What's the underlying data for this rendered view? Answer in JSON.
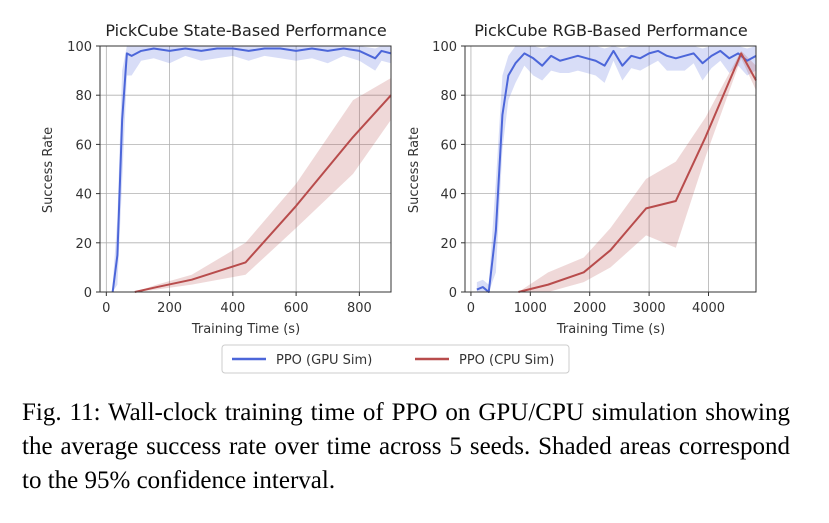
{
  "chart_data": [
    {
      "type": "line",
      "title": "PickCube State-Based Performance",
      "xlabel": "Training Time (s)",
      "ylabel": "Success Rate",
      "xlim": [
        -20,
        900
      ],
      "ylim": [
        0,
        100
      ],
      "xticks": [
        0,
        200,
        400,
        600,
        800
      ],
      "yticks": [
        0,
        20,
        40,
        60,
        80,
        100
      ],
      "grid": true,
      "series": [
        {
          "name": "PPO (GPU Sim)",
          "color": "#4c66d9",
          "x": [
            20,
            35,
            50,
            65,
            80,
            110,
            150,
            200,
            250,
            300,
            350,
            400,
            450,
            500,
            550,
            600,
            650,
            700,
            750,
            800,
            850,
            870,
            900
          ],
          "y": [
            0,
            15,
            70,
            97,
            96,
            98,
            99,
            98,
            99,
            98,
            99,
            99,
            98,
            99,
            99,
            98,
            99,
            98,
            99,
            98,
            95,
            98,
            97
          ],
          "lower": [
            0,
            3,
            45,
            88,
            88,
            94,
            95,
            93,
            96,
            94,
            95,
            96,
            94,
            96,
            95,
            94,
            95,
            93,
            96,
            94,
            90,
            94,
            93
          ],
          "upper": [
            3,
            30,
            90,
            100,
            100,
            100,
            100,
            100,
            100,
            100,
            100,
            100,
            100,
            100,
            100,
            100,
            100,
            100,
            100,
            100,
            99,
            100,
            100
          ]
        },
        {
          "name": "PPO (CPU Sim)",
          "color": "#b84c4c",
          "x": [
            90,
            160,
            270,
            440,
            600,
            780,
            900
          ],
          "y": [
            0,
            2,
            5,
            12,
            35,
            63,
            80
          ],
          "lower": [
            0,
            1,
            3,
            7,
            26,
            48,
            70
          ],
          "upper": [
            0,
            3,
            7,
            20,
            44,
            78,
            87
          ]
        }
      ]
    },
    {
      "type": "line",
      "title": "PickCube RGB-Based Performance",
      "xlabel": "Training Time (s)",
      "ylabel": "Success Rate",
      "xlim": [
        -100,
        4800
      ],
      "ylim": [
        0,
        100
      ],
      "xticks": [
        0,
        1000,
        2000,
        3000,
        4000
      ],
      "yticks": [
        0,
        20,
        40,
        60,
        80,
        100
      ],
      "grid": true,
      "series": [
        {
          "name": "PPO (GPU Sim)",
          "color": "#4c66d9",
          "x": [
            100,
            200,
            300,
            420,
            530,
            630,
            750,
            900,
            1050,
            1200,
            1350,
            1500,
            1650,
            1800,
            1950,
            2100,
            2250,
            2400,
            2550,
            2700,
            2850,
            3000,
            3150,
            3300,
            3450,
            3600,
            3750,
            3900,
            4050,
            4200,
            4350,
            4500,
            4650,
            4800
          ],
          "y": [
            1,
            2,
            0,
            25,
            72,
            88,
            93,
            97,
            95,
            92,
            96,
            94,
            95,
            96,
            95,
            94,
            92,
            98,
            92,
            96,
            95,
            97,
            98,
            96,
            95,
            96,
            97,
            93,
            96,
            98,
            95,
            97,
            94,
            96
          ],
          "lower": [
            0,
            0,
            0,
            8,
            58,
            78,
            85,
            92,
            88,
            86,
            90,
            89,
            89,
            90,
            89,
            88,
            85,
            94,
            86,
            91,
            90,
            92,
            94,
            90,
            90,
            90,
            93,
            86,
            91,
            94,
            89,
            92,
            88,
            90
          ],
          "upper": [
            4,
            5,
            3,
            45,
            88,
            96,
            100,
            100,
            100,
            99,
            100,
            100,
            100,
            100,
            100,
            100,
            99,
            100,
            99,
            100,
            100,
            100,
            100,
            100,
            100,
            100,
            100,
            99,
            100,
            100,
            100,
            100,
            99,
            100
          ]
        },
        {
          "name": "PPO (CPU Sim)",
          "color": "#b84c4c",
          "x": [
            800,
            1300,
            1900,
            2350,
            2950,
            3450,
            3950,
            4550,
            4800
          ],
          "y": [
            0,
            3,
            8,
            17,
            34,
            37,
            63,
            97,
            86
          ],
          "lower": [
            0,
            0,
            4,
            10,
            23,
            18,
            55,
            95,
            82
          ],
          "upper": [
            0,
            8,
            14,
            26,
            46,
            53,
            71,
            98,
            92
          ]
        }
      ]
    }
  ],
  "legend": {
    "items": [
      {
        "label": "PPO (GPU Sim)",
        "color": "#4c66d9"
      },
      {
        "label": "PPO (CPU Sim)",
        "color": "#b84c4c"
      }
    ]
  },
  "caption": "Fig. 11: Wall-clock training time of PPO on GPU/CPU simulation showing the average success rate over time across 5 seeds. Shaded areas correspond to the 95% confidence interval."
}
